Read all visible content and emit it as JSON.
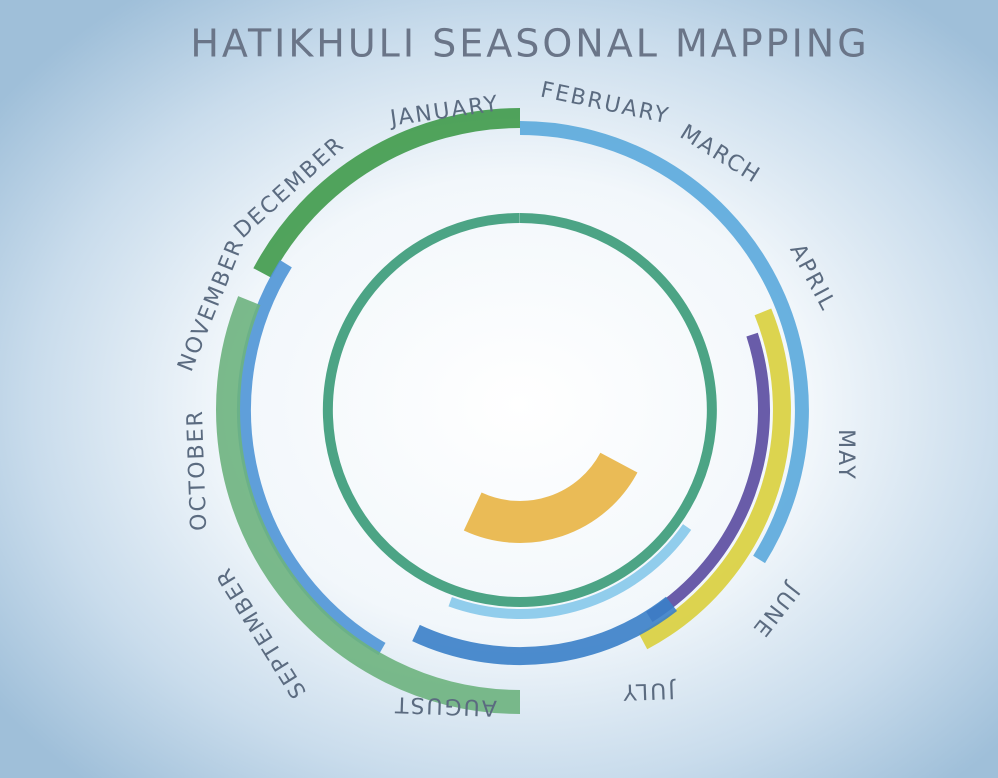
{
  "title": "HATIKHULI SEASONAL MAPPING",
  "months": [
    "JANUARY",
    "FEBRUARY",
    "MARCH",
    "APRIL",
    "MAY",
    "JUNE",
    "JULY",
    "AUGUST",
    "SEPTEMBER",
    "OCTOBER",
    "NOVEMBER",
    "DECEMBER"
  ]
}
